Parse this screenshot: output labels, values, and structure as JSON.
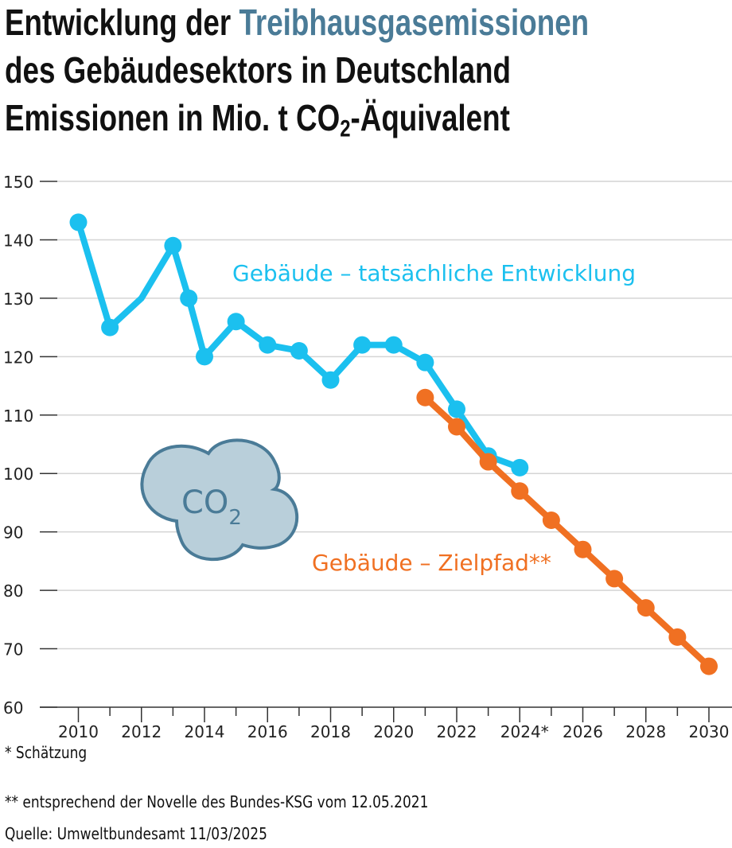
{
  "title": {
    "line1_prefix": "Entwicklung der ",
    "line1_accent": "Treibhausgasemissionen",
    "line2": "des Gebäudesektors in Deutschland",
    "line3_prefix": "Emissionen in Mio. t CO",
    "line3_sub": "2",
    "line3_suffix": "-Äquivalent"
  },
  "chart_data": {
    "type": "line",
    "title": "Entwicklung der Treibhausgasemissionen des Gebäudesektors in Deutschland",
    "ylabel": "Emissionen in Mio. t CO2-Äquivalent",
    "ylim": [
      60,
      150
    ],
    "yticks": [
      150,
      140,
      130,
      120,
      110,
      100,
      90,
      80,
      70,
      60
    ],
    "xlim": [
      2010,
      2030
    ],
    "xtick_labels": [
      {
        "x": 2010,
        "label": "2010"
      },
      {
        "x": 2012,
        "label": "2012"
      },
      {
        "x": 2014,
        "label": "2014"
      },
      {
        "x": 2016,
        "label": "2016"
      },
      {
        "x": 2018,
        "label": "2018"
      },
      {
        "x": 2020,
        "label": "2020"
      },
      {
        "x": 2022,
        "label": "2022"
      },
      {
        "x": 2024,
        "label": "2024*"
      },
      {
        "x": 2026,
        "label": "2026"
      },
      {
        "x": 2028,
        "label": "2028"
      },
      {
        "x": 2030,
        "label": "2030"
      }
    ],
    "grid": true,
    "series": [
      {
        "name": "Gebäude – tatsächliche Entwicklung",
        "color": "#1bc0ef",
        "points": [
          {
            "x": 2010,
            "y": 143
          },
          {
            "x": 2011,
            "y": 125
          },
          {
            "x": 2012,
            "y": 130,
            "marker": false
          },
          {
            "x": 2013,
            "y": 139
          },
          {
            "x": 2013.5,
            "y": 130
          },
          {
            "x": 2014,
            "y": 120
          },
          {
            "x": 2015,
            "y": 126
          },
          {
            "x": 2016,
            "y": 122
          },
          {
            "x": 2017,
            "y": 121
          },
          {
            "x": 2018,
            "y": 116
          },
          {
            "x": 2019,
            "y": 122
          },
          {
            "x": 2020,
            "y": 122
          },
          {
            "x": 2021,
            "y": 119
          },
          {
            "x": 2022,
            "y": 111
          },
          {
            "x": 2023,
            "y": 103
          },
          {
            "x": 2024,
            "y": 101
          }
        ]
      },
      {
        "name": "Gebäude – Zielpfad**",
        "color": "#f07022",
        "points": [
          {
            "x": 2021,
            "y": 113
          },
          {
            "x": 2022,
            "y": 108
          },
          {
            "x": 2023,
            "y": 102
          },
          {
            "x": 2024,
            "y": 97
          },
          {
            "x": 2025,
            "y": 92
          },
          {
            "x": 2026,
            "y": 87
          },
          {
            "x": 2027,
            "y": 82
          },
          {
            "x": 2028,
            "y": 77
          },
          {
            "x": 2029,
            "y": 72
          },
          {
            "x": 2030,
            "y": 67
          }
        ]
      }
    ]
  },
  "cloud": {
    "label": "CO",
    "sub": "2",
    "fill": "#b9cfda",
    "stroke": "#4a7b97"
  },
  "footnotes": {
    "estimate": "* Schätzung",
    "target": "** entsprechend der Novelle des Bundes-KSG vom 12.05.2021",
    "source": "Quelle: Umweltbundesamt 11/03/2025"
  }
}
